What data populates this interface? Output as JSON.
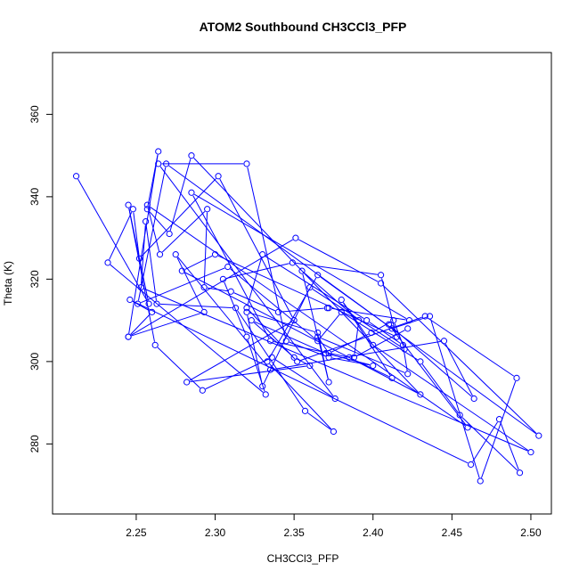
{
  "chart_data": {
    "type": "line",
    "title": "ATOM2 Southbound CH3CCl3_PFP",
    "xlabel": "CH3CCl3_PFP",
    "ylabel": "Theta (K)",
    "xlim": [
      2.197,
      2.513
    ],
    "ylim": [
      263,
      375
    ],
    "x_ticks": [
      "2.25",
      "2.30",
      "2.35",
      "2.40",
      "2.45",
      "2.50"
    ],
    "x_tick_values": [
      2.25,
      2.3,
      2.35,
      2.4,
      2.45,
      2.5
    ],
    "y_ticks": [
      "280",
      "300",
      "320",
      "340",
      "360"
    ],
    "y_tick_values": [
      280,
      300,
      320,
      340,
      360
    ],
    "grid": false,
    "marker": "open-circle",
    "color": "#0000ff",
    "x": [
      2.212,
      2.258,
      2.245,
      2.262,
      2.292,
      2.336,
      2.376,
      2.264,
      2.32,
      2.345,
      2.372,
      2.4,
      2.37,
      2.323,
      2.35,
      2.36,
      2.282,
      2.35,
      2.302,
      2.252,
      2.248,
      2.232,
      2.332,
      2.32,
      2.305,
      2.349,
      2.405,
      2.415,
      2.3,
      2.279,
      2.43,
      2.285,
      2.271,
      2.257,
      2.264,
      2.245,
      2.351,
      2.405,
      2.505,
      2.269,
      2.251,
      2.308,
      2.365,
      2.38,
      2.43,
      2.455,
      2.493,
      2.48,
      2.462,
      2.246,
      2.26,
      2.245,
      2.293,
      2.275,
      2.335,
      2.445,
      2.464,
      2.41,
      2.46,
      2.257,
      2.265,
      2.295,
      2.293,
      2.31,
      2.34,
      2.371,
      2.372,
      2.423,
      2.285,
      2.335,
      2.385,
      2.412,
      2.38,
      2.4,
      2.5,
      2.253,
      2.256,
      2.263,
      2.313,
      2.357,
      2.375,
      2.333,
      2.365,
      2.412,
      2.436,
      2.468,
      2.491,
      2.433,
      2.352,
      2.32,
      2.33,
      2.396,
      2.419,
      2.422,
      2.365,
      2.372,
      2.399,
      2.413,
      2.42,
      2.36,
      2.33,
      2.32,
      2.365,
      2.372,
      2.355,
      2.391,
      2.388,
      2.422
    ],
    "y": [
      345,
      314,
      338,
      304,
      293,
      301,
      291,
      348,
      348,
      305,
      301,
      299,
      302,
      310,
      301,
      299,
      295,
      310,
      345,
      325,
      337,
      324,
      292,
      306,
      320,
      324,
      321,
      306,
      326,
      322,
      292,
      350,
      331,
      337,
      351,
      306,
      330,
      319,
      282,
      348,
      314,
      323,
      305,
      312,
      300,
      287,
      273,
      286,
      275,
      315,
      312,
      306,
      312,
      326,
      298,
      305,
      291,
      309,
      284,
      338,
      326,
      337,
      318,
      317,
      312,
      313,
      313,
      310,
      341,
      305,
      301,
      296,
      315,
      304,
      278,
      318,
      334,
      314,
      313,
      288,
      283,
      300,
      321,
      308,
      311,
      271,
      296,
      311,
      300,
      313,
      326,
      310,
      304,
      297,
      306,
      302,
      307,
      310,
      303,
      318,
      294,
      312,
      307,
      295,
      322,
      310,
      301,
      308
    ]
  }
}
